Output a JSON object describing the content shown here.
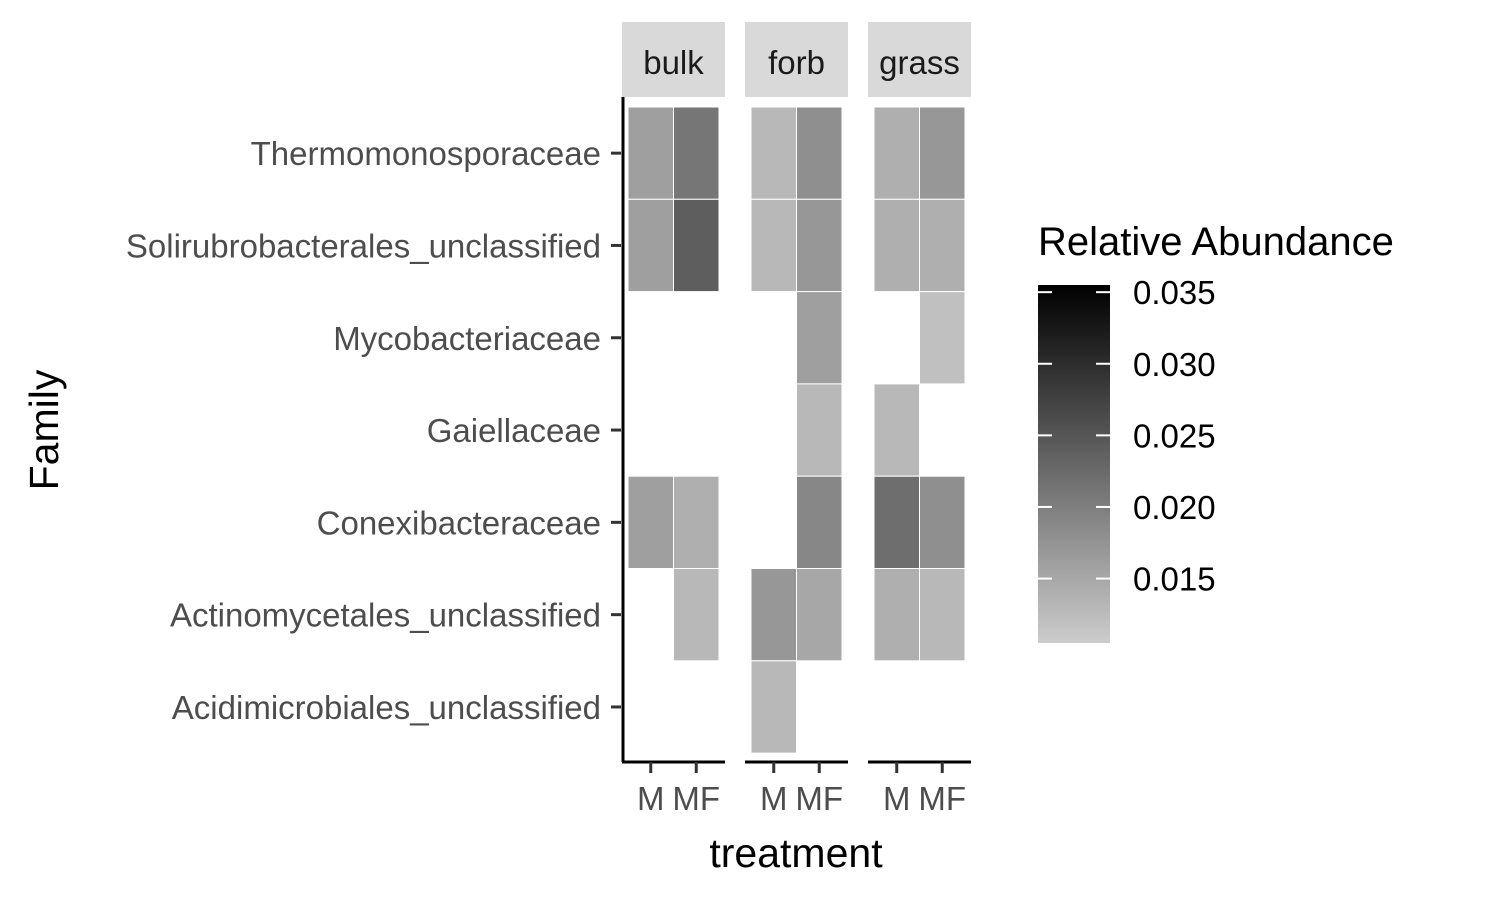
{
  "chart_data": {
    "type": "heatmap",
    "xlabel": "treatment",
    "ylabel": "Family",
    "facets": [
      "bulk",
      "forb",
      "grass"
    ],
    "treatments": [
      "M",
      "MF"
    ],
    "families": [
      "Thermomonosporaceae",
      "Solirubrobacterales_unclassified",
      "Mycobacteriaceae",
      "Gaiellaceae",
      "Conexibacteraceae",
      "Actinomycetales_unclassified",
      "Acidimicrobiales_unclassified"
    ],
    "cells": [
      {
        "facet": "bulk",
        "treatment": "M",
        "family": "Thermomonosporaceae",
        "value": 0.016
      },
      {
        "facet": "bulk",
        "treatment": "MF",
        "family": "Thermomonosporaceae",
        "value": 0.021
      },
      {
        "facet": "bulk",
        "treatment": "M",
        "family": "Solirubrobacterales_unclassified",
        "value": 0.016
      },
      {
        "facet": "bulk",
        "treatment": "MF",
        "family": "Solirubrobacterales_unclassified",
        "value": 0.024
      },
      {
        "facet": "bulk",
        "treatment": "M",
        "family": "Conexibacteraceae",
        "value": 0.016
      },
      {
        "facet": "bulk",
        "treatment": "MF",
        "family": "Conexibacteraceae",
        "value": 0.014
      },
      {
        "facet": "bulk",
        "treatment": "MF",
        "family": "Actinomycetales_unclassified",
        "value": 0.013
      },
      {
        "facet": "forb",
        "treatment": "M",
        "family": "Thermomonosporaceae",
        "value": 0.013
      },
      {
        "facet": "forb",
        "treatment": "MF",
        "family": "Thermomonosporaceae",
        "value": 0.018
      },
      {
        "facet": "forb",
        "treatment": "M",
        "family": "Solirubrobacterales_unclassified",
        "value": 0.013
      },
      {
        "facet": "forb",
        "treatment": "MF",
        "family": "Solirubrobacterales_unclassified",
        "value": 0.017
      },
      {
        "facet": "forb",
        "treatment": "MF",
        "family": "Mycobacteriaceae",
        "value": 0.016
      },
      {
        "facet": "forb",
        "treatment": "MF",
        "family": "Gaiellaceae",
        "value": 0.013
      },
      {
        "facet": "forb",
        "treatment": "MF",
        "family": "Conexibacteraceae",
        "value": 0.019
      },
      {
        "facet": "forb",
        "treatment": "M",
        "family": "Actinomycetales_unclassified",
        "value": 0.017
      },
      {
        "facet": "forb",
        "treatment": "MF",
        "family": "Actinomycetales_unclassified",
        "value": 0.015
      },
      {
        "facet": "forb",
        "treatment": "M",
        "family": "Acidimicrobiales_unclassified",
        "value": 0.013
      },
      {
        "facet": "grass",
        "treatment": "M",
        "family": "Thermomonosporaceae",
        "value": 0.014
      },
      {
        "facet": "grass",
        "treatment": "MF",
        "family": "Thermomonosporaceae",
        "value": 0.017
      },
      {
        "facet": "grass",
        "treatment": "M",
        "family": "Solirubrobacterales_unclassified",
        "value": 0.014
      },
      {
        "facet": "grass",
        "treatment": "MF",
        "family": "Solirubrobacterales_unclassified",
        "value": 0.014
      },
      {
        "facet": "grass",
        "treatment": "MF",
        "family": "Mycobacteriaceae",
        "value": 0.012
      },
      {
        "facet": "grass",
        "treatment": "M",
        "family": "Gaiellaceae",
        "value": 0.013
      },
      {
        "facet": "grass",
        "treatment": "M",
        "family": "Conexibacteraceae",
        "value": 0.022
      },
      {
        "facet": "grass",
        "treatment": "MF",
        "family": "Conexibacteraceae",
        "value": 0.018
      },
      {
        "facet": "grass",
        "treatment": "M",
        "family": "Actinomycetales_unclassified",
        "value": 0.014
      },
      {
        "facet": "grass",
        "treatment": "MF",
        "family": "Actinomycetales_unclassified",
        "value": 0.013
      }
    ],
    "legend": {
      "title": "Relative Abundance",
      "placement": "right",
      "min": 0.0105,
      "max": 0.0355,
      "ticks": [
        0.015,
        0.02,
        0.025,
        0.03,
        0.035
      ],
      "tick_labels": [
        "0.015",
        "0.020",
        "0.025",
        "0.030",
        "0.035"
      ],
      "low_color": "#cccccc",
      "high_color": "#000000"
    },
    "grid": false
  }
}
